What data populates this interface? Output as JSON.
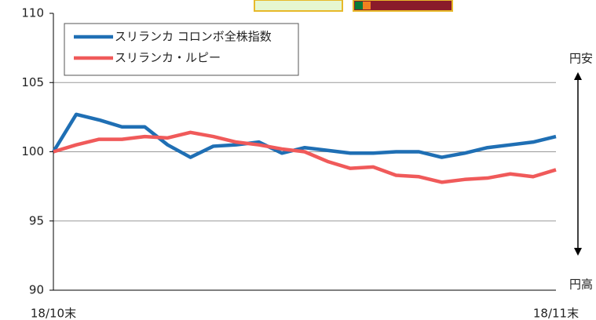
{
  "chart_data": {
    "type": "line",
    "categories": [
      "18/10末",
      null,
      null,
      null,
      null,
      null,
      null,
      null,
      null,
      null,
      null,
      null,
      null,
      null,
      null,
      null,
      null,
      null,
      null,
      null,
      null,
      null,
      "18/11末"
    ],
    "series": [
      {
        "name": "スリランカ コロンボ全株指数",
        "color": "#1f6fb4",
        "values": [
          100,
          102.7,
          102.3,
          101.8,
          101.8,
          100.5,
          99.6,
          100.4,
          100.5,
          100.7,
          99.9,
          100.3,
          100.1,
          99.9,
          99.9,
          100.0,
          100.0,
          99.6,
          99.9,
          100.3,
          100.5,
          100.7,
          101.1
        ]
      },
      {
        "name": "スリランカ・ルピー",
        "color": "#f05a5a",
        "values": [
          100,
          100.5,
          100.9,
          100.9,
          101.1,
          101.0,
          101.4,
          101.1,
          100.7,
          100.5,
          100.2,
          100.0,
          99.3,
          98.8,
          98.9,
          98.3,
          98.2,
          97.8,
          98.0,
          98.1,
          98.4,
          98.2,
          98.7
        ]
      }
    ],
    "ylim": [
      90,
      110
    ],
    "yticks": [
      90,
      95,
      100,
      105,
      110
    ],
    "grid": true,
    "legend": "upper left",
    "annotations": {
      "top": "円安",
      "bottom": "円高"
    }
  }
}
